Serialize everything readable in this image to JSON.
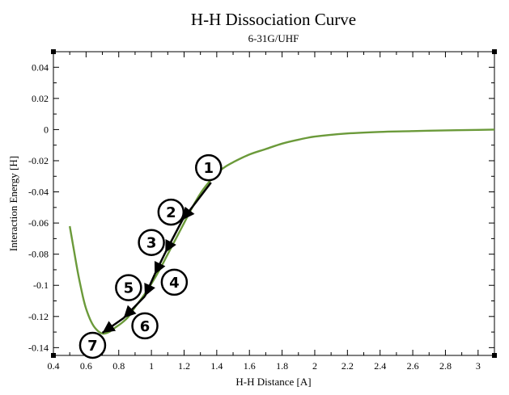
{
  "chart_data": {
    "type": "line",
    "title": "H-H Dissociation Curve",
    "subtitle": "6-31G/UHF",
    "xlabel": "H-H Distance [A]",
    "ylabel": "Interaction Energy [H]",
    "xlim": [
      0.4,
      3.1
    ],
    "ylim": [
      -0.145,
      0.05
    ],
    "xticks": [
      0.4,
      0.6,
      0.8,
      1,
      1.2,
      1.4,
      1.6,
      1.8,
      2,
      2.2,
      2.4,
      2.6,
      2.8,
      3
    ],
    "xtick_labels": [
      "0.4",
      "0.6",
      "0.8",
      "1",
      "1.2",
      "1.4",
      "1.6",
      "1.8",
      "2",
      "2.2",
      "2.4",
      "2.6",
      "2.8",
      "3"
    ],
    "yticks": [
      0.04,
      0.02,
      0,
      -0.02,
      -0.04,
      -0.06,
      -0.08,
      -0.1,
      -0.12,
      -0.14
    ],
    "ytick_labels": [
      "0.04",
      "0.02",
      "0",
      "-0.02",
      "-0.04",
      "-0.06",
      "-0.08",
      "-0.1",
      "-0.12",
      "-0.14"
    ],
    "grid": false,
    "series": [
      {
        "color": "#6b9a3a",
        "x": [
          0.5,
          0.52,
          0.55,
          0.58,
          0.6,
          0.63,
          0.66,
          0.7,
          0.74,
          0.78,
          0.82,
          0.86,
          0.9,
          0.95,
          1.0,
          1.05,
          1.1,
          1.15,
          1.2,
          1.25,
          1.3,
          1.35,
          1.4,
          1.45,
          1.5,
          1.6,
          1.7,
          1.8,
          1.9,
          2.0,
          2.2,
          2.4,
          2.6,
          2.8,
          3.0,
          3.1
        ],
        "y": [
          -0.062,
          -0.074,
          -0.092,
          -0.107,
          -0.115,
          -0.123,
          -0.128,
          -0.131,
          -0.13,
          -0.127,
          -0.124,
          -0.12,
          -0.114,
          -0.107,
          -0.099,
          -0.09,
          -0.08,
          -0.07,
          -0.06,
          -0.05,
          -0.041,
          -0.034,
          -0.028,
          -0.024,
          -0.021,
          -0.016,
          -0.0125,
          -0.009,
          -0.0065,
          -0.0045,
          -0.0025,
          -0.0015,
          -0.001,
          -0.0005,
          -0.0002,
          0
        ]
      }
    ],
    "annotations": [
      {
        "label": "1",
        "x": 1.35,
        "y": -0.0245
      },
      {
        "label": "2",
        "x": 1.12,
        "y": -0.053
      },
      {
        "label": "3",
        "x": 1.0,
        "y": -0.0725
      },
      {
        "label": "4",
        "x": 1.14,
        "y": -0.098
      },
      {
        "label": "5",
        "x": 0.86,
        "y": -0.1015
      },
      {
        "label": "6",
        "x": 0.96,
        "y": -0.126
      },
      {
        "label": "7",
        "x": 0.64,
        "y": -0.1385
      }
    ],
    "arrows": [
      {
        "from": [
          1.365,
          -0.034
        ],
        "to": [
          1.19,
          -0.058
        ]
      },
      {
        "from": [
          1.19,
          -0.058
        ],
        "to": [
          1.085,
          -0.079
        ]
      },
      {
        "from": [
          1.085,
          -0.079
        ],
        "to": [
          1.02,
          -0.093
        ]
      },
      {
        "from": [
          1.02,
          -0.093
        ],
        "to": [
          0.96,
          -0.107
        ]
      },
      {
        "from": [
          0.96,
          -0.107
        ],
        "to": [
          0.83,
          -0.121
        ]
      },
      {
        "from": [
          0.83,
          -0.121
        ],
        "to": [
          0.7,
          -0.1305
        ]
      }
    ]
  }
}
